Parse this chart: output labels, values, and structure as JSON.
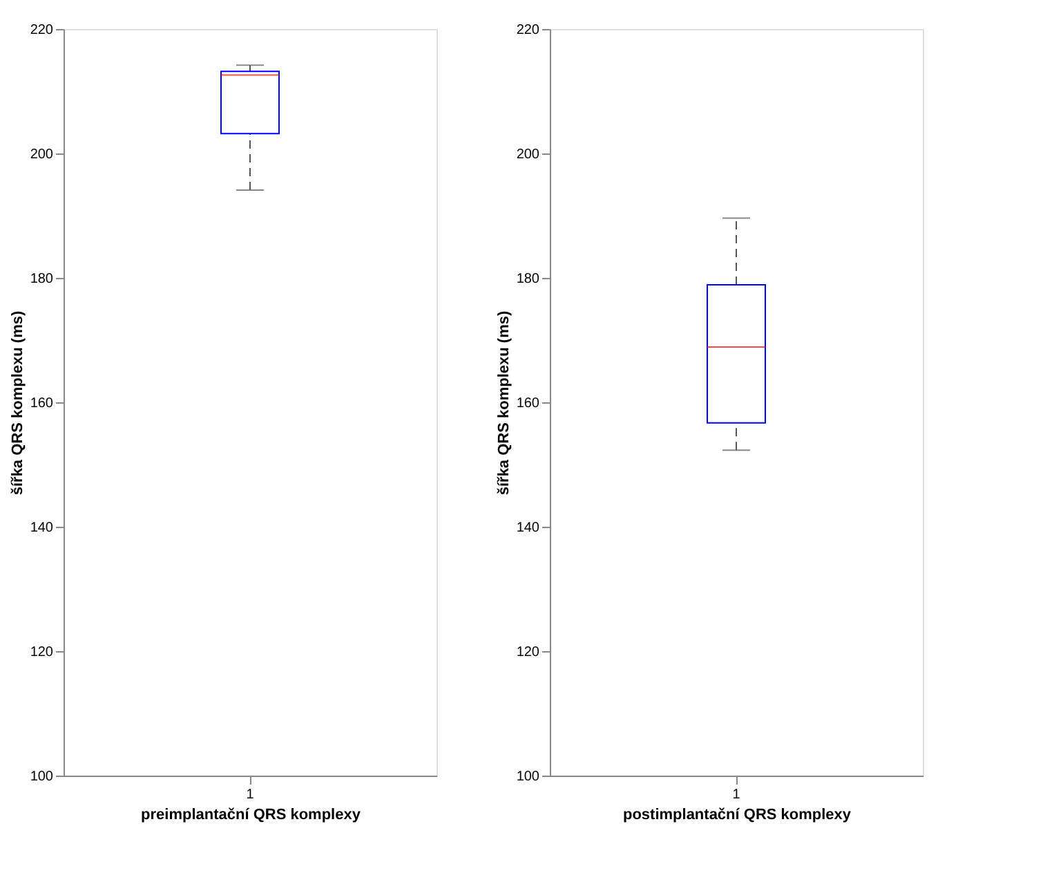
{
  "chart_data": [
    {
      "type": "box",
      "categories": [
        "1"
      ],
      "xlabel": "preimplantační QRS komplexy",
      "ylabel": "šířka QRS komplexu (ms)",
      "ylim": [
        100,
        220
      ],
      "yticks": [
        100,
        120,
        140,
        160,
        180,
        200,
        220
      ],
      "grid": false,
      "series": [
        {
          "color": "#0000ff",
          "boxes": [
            {
              "low": 194.1,
              "q1": 203.2,
              "median": 212.6,
              "q3": 213.2,
              "high": 214.2
            }
          ]
        }
      ]
    },
    {
      "type": "box",
      "categories": [
        "1"
      ],
      "xlabel": "postimplantační QRS komplexy",
      "ylabel": "šířka QRS komplexu (ms)",
      "ylim": [
        100,
        220
      ],
      "yticks": [
        100,
        120,
        140,
        160,
        180,
        200,
        220
      ],
      "grid": false,
      "series": [
        {
          "color": "#0000ff",
          "boxes": [
            {
              "low": 152.3,
              "q1": 156.7,
              "median": 168.9,
              "q3": 178.9,
              "high": 189.6
            }
          ]
        }
      ]
    }
  ]
}
